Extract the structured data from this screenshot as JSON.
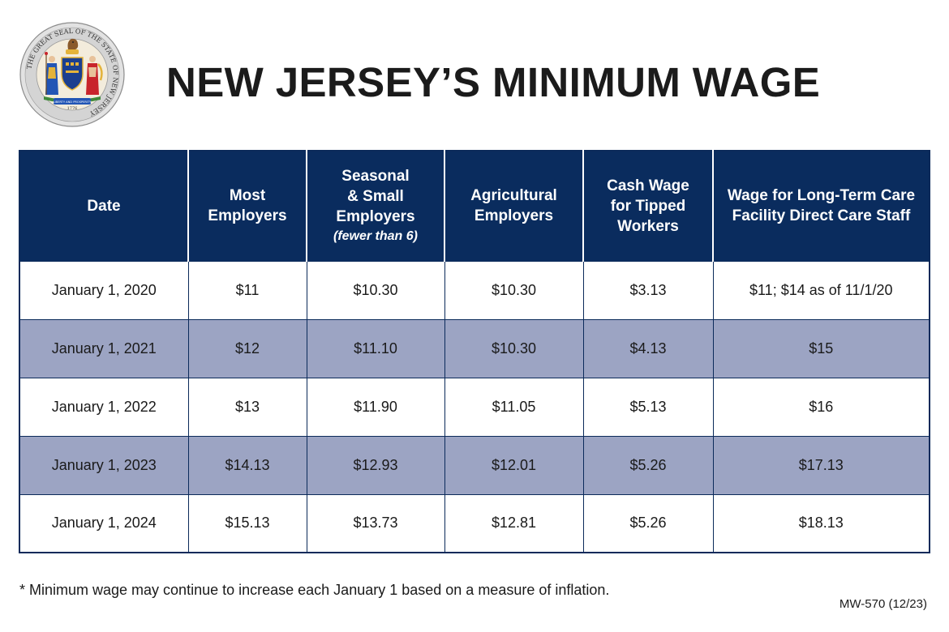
{
  "title": "NEW JERSEY’S MINIMUM WAGE",
  "seal": {
    "ring_text": "THE GREAT SEAL OF THE STATE OF NEW JERSEY",
    "motto": "LIBERTY AND PROSPERITY",
    "year": "1776",
    "colors": {
      "ring": "#d9d9d9",
      "center": "#f5efe1",
      "shield": "#1b3f8f",
      "gold": "#e4b33a",
      "red": "#c8242b",
      "green": "#3f8a3a",
      "blue": "#2255b5"
    }
  },
  "table": {
    "headers": [
      {
        "lines": [
          "Date"
        ]
      },
      {
        "lines": [
          "Most",
          "Employers"
        ]
      },
      {
        "lines": [
          "Seasonal",
          "& Small",
          "Employers"
        ],
        "note": "(fewer than 6)"
      },
      {
        "lines": [
          "Agricultural",
          "Employers"
        ]
      },
      {
        "lines": [
          "Cash Wage",
          "for Tipped",
          "Workers"
        ]
      },
      {
        "lines": [
          "Wage for Long-Term Care",
          "Facility Direct Care Staff"
        ]
      }
    ],
    "rows": [
      {
        "cells": [
          "January 1, 2020",
          "$11",
          "$10.30",
          "$10.30",
          "$3.13",
          "$11;  $14 as of 11/1/20"
        ]
      },
      {
        "cells": [
          "January 1, 2021",
          "$12",
          "$11.10",
          "$10.30",
          "$4.13",
          "$15"
        ]
      },
      {
        "cells": [
          "January 1, 2022",
          "$13",
          "$11.90",
          "$11.05",
          "$5.13",
          "$16"
        ]
      },
      {
        "cells": [
          "January 1, 2023",
          "$14.13",
          "$12.93",
          "$12.01",
          "$5.26",
          "$17.13"
        ]
      },
      {
        "cells": [
          "January 1, 2024",
          "$15.13",
          "$13.73",
          "$12.81",
          "$5.26",
          "$18.13"
        ]
      }
    ],
    "colors": {
      "header_bg": "#0a2c5e",
      "shaded_row": "#9ca4c3",
      "border": "#0b2a5a"
    }
  },
  "footnote": "* Minimum wage may continue to increase each January 1 based on a measure of inflation.",
  "form_code": "MW-570 (12/23)"
}
